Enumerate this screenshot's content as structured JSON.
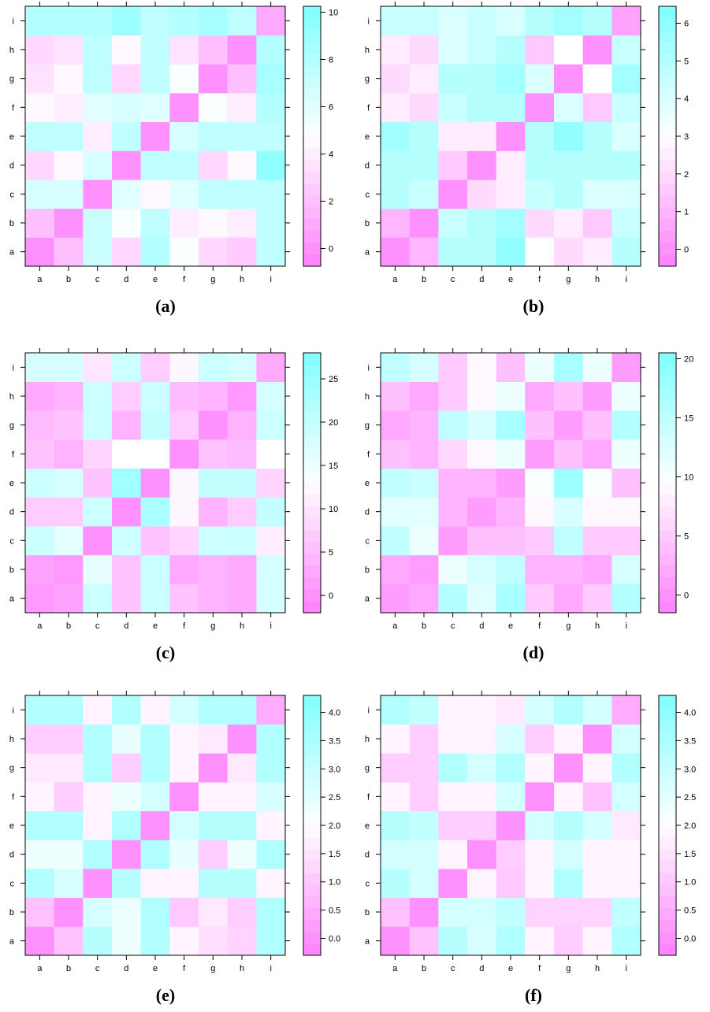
{
  "chart_data": [
    {
      "type": "heatmap",
      "label": "(a)",
      "x_categories": [
        "a",
        "b",
        "c",
        "d",
        "e",
        "f",
        "g",
        "h",
        "i"
      ],
      "y_categories": [
        "a",
        "b",
        "c",
        "d",
        "e",
        "f",
        "g",
        "h",
        "i"
      ],
      "scale": {
        "min": -0.75,
        "max": 10.25,
        "ticks": [
          0,
          2,
          4,
          6,
          8,
          10
        ],
        "tick_labels": [
          "0",
          "2",
          "4",
          "6",
          "8",
          "10"
        ]
      },
      "values": [
        [
          0,
          2,
          7,
          3,
          8,
          5,
          3,
          2.5,
          7.5
        ],
        [
          2,
          0,
          7,
          5,
          7.5,
          4,
          4.5,
          4,
          7.5
        ],
        [
          6.5,
          6.5,
          0,
          6,
          4.5,
          6,
          7.5,
          7.5,
          7.5
        ],
        [
          3,
          4.5,
          6.5,
          0,
          7.5,
          7.5,
          3,
          4.5,
          9.5
        ],
        [
          7.5,
          7.5,
          4,
          7.5,
          0,
          6.5,
          7.5,
          7.5,
          7.5
        ],
        [
          4.5,
          4,
          6,
          6.5,
          6,
          0,
          5,
          4,
          8
        ],
        [
          3.5,
          4.5,
          7.5,
          3,
          7.5,
          5,
          0,
          2,
          8.5
        ],
        [
          3,
          3.5,
          7.5,
          4.5,
          7.5,
          3.5,
          2,
          0,
          8
        ],
        [
          8,
          8,
          8,
          9,
          7.5,
          8,
          8.5,
          7.5,
          1
        ]
      ]
    },
    {
      "type": "heatmap",
      "label": "(b)",
      "x_categories": [
        "a",
        "b",
        "c",
        "d",
        "e",
        "f",
        "g",
        "h",
        "i"
      ],
      "y_categories": [
        "a",
        "b",
        "c",
        "d",
        "e",
        "f",
        "g",
        "h",
        "i"
      ],
      "scale": {
        "min": -0.45,
        "max": 6.45,
        "ticks": [
          0,
          1,
          2,
          3,
          4,
          5,
          6
        ],
        "tick_labels": [
          "0",
          "1",
          "2",
          "3",
          "4",
          "5",
          "6"
        ]
      },
      "values": [
        [
          0,
          1,
          5,
          5,
          6,
          3,
          2,
          2.5,
          5
        ],
        [
          1,
          0,
          4.5,
          5,
          5.5,
          2,
          2.5,
          1.5,
          4.5
        ],
        [
          5,
          4.5,
          0,
          2,
          2.5,
          4.5,
          5,
          4,
          4
        ],
        [
          5,
          5,
          1.5,
          0,
          2.5,
          5,
          5,
          5,
          5
        ],
        [
          5.5,
          5,
          2.5,
          2.5,
          0,
          5,
          6,
          5,
          4
        ],
        [
          2.5,
          2,
          4.5,
          5,
          5,
          0,
          4,
          1.5,
          4.5
        ],
        [
          2,
          2.5,
          5,
          5,
          5.5,
          4,
          0,
          3,
          5.5
        ],
        [
          2.5,
          2,
          4,
          4.5,
          5,
          1.5,
          3,
          0,
          4.5
        ],
        [
          4.5,
          4.5,
          4,
          4.5,
          4,
          5,
          5.5,
          5,
          0.5
        ]
      ]
    },
    {
      "type": "heatmap",
      "label": "(c)",
      "x_categories": [
        "a",
        "b",
        "c",
        "d",
        "e",
        "f",
        "g",
        "h",
        "i"
      ],
      "y_categories": [
        "a",
        "b",
        "c",
        "d",
        "e",
        "f",
        "g",
        "h",
        "i"
      ],
      "scale": {
        "min": -2,
        "max": 28,
        "ticks": [
          0,
          5,
          10,
          15,
          20,
          25
        ],
        "tick_labels": [
          "0",
          "5",
          "10",
          "15",
          "20",
          "25"
        ]
      },
      "values": [
        [
          1,
          2,
          19,
          6,
          19,
          6,
          4,
          3,
          18
        ],
        [
          2,
          1,
          16,
          6,
          19,
          3,
          4,
          3,
          18
        ],
        [
          19,
          16,
          0,
          19,
          6,
          8,
          19,
          19,
          11
        ],
        [
          7,
          7,
          19,
          0,
          23,
          12,
          4,
          7,
          20
        ],
        [
          19,
          18,
          6,
          24,
          0,
          12,
          20,
          20,
          8
        ],
        [
          6,
          4,
          8,
          13,
          13,
          0,
          6,
          5,
          13
        ],
        [
          5,
          6,
          19,
          4,
          20,
          7,
          0,
          4,
          19
        ],
        [
          3,
          4,
          19,
          7,
          19,
          5,
          4,
          1,
          18
        ],
        [
          18,
          18,
          10,
          19,
          7,
          12,
          19,
          18,
          3
        ]
      ]
    },
    {
      "type": "heatmap",
      "label": "(d)",
      "x_categories": [
        "a",
        "b",
        "c",
        "d",
        "e",
        "f",
        "g",
        "h",
        "i"
      ],
      "y_categories": [
        "a",
        "b",
        "c",
        "d",
        "e",
        "f",
        "g",
        "h",
        "i"
      ],
      "scale": {
        "min": -1.5,
        "max": 20.5,
        "ticks": [
          0,
          5,
          10,
          15,
          20
        ],
        "tick_labels": [
          "0",
          "5",
          "10",
          "15",
          "20"
        ]
      },
      "values": [
        [
          1,
          2,
          16,
          12,
          17,
          5,
          2,
          5,
          16
        ],
        [
          2,
          1,
          11,
          13,
          15,
          3,
          3,
          2,
          13
        ],
        [
          15,
          11,
          1,
          4,
          4,
          5,
          15,
          5,
          5
        ],
        [
          12,
          12,
          3,
          1,
          3,
          9,
          13,
          9,
          9
        ],
        [
          15,
          14,
          3,
          3,
          1,
          10,
          18,
          10,
          4
        ],
        [
          4,
          3,
          6,
          9,
          11,
          1,
          4,
          2,
          11
        ],
        [
          2,
          3,
          15,
          13,
          17,
          4,
          1,
          4,
          16
        ],
        [
          4,
          2,
          5,
          9,
          11,
          2,
          4,
          1,
          11
        ],
        [
          15,
          13,
          5,
          9,
          4,
          11,
          17,
          11,
          1
        ]
      ]
    },
    {
      "type": "heatmap",
      "label": "(e)",
      "x_categories": [
        "a",
        "b",
        "c",
        "d",
        "e",
        "f",
        "g",
        "h",
        "i"
      ],
      "y_categories": [
        "a",
        "b",
        "c",
        "d",
        "e",
        "f",
        "g",
        "h",
        "i"
      ],
      "scale": {
        "min": -0.3,
        "max": 4.3,
        "ticks": [
          0,
          0.5,
          1,
          1.5,
          2,
          2.5,
          3,
          3.5,
          4
        ],
        "tick_labels": [
          "0.0",
          "0.5",
          "1.0",
          "1.5",
          "2.0",
          "2.5",
          "3.0",
          "3.5",
          "4.0"
        ]
      },
      "values": [
        [
          0,
          0.9,
          3.3,
          2.3,
          3.4,
          1.8,
          1.4,
          1.2,
          3.4
        ],
        [
          0.9,
          0,
          2.7,
          2.3,
          3.4,
          1,
          1.6,
          1.1,
          3.4
        ],
        [
          3.4,
          2.7,
          0,
          3.3,
          1.8,
          1.8,
          3.3,
          3.3,
          1.8
        ],
        [
          2.3,
          2.3,
          3.4,
          0,
          3.4,
          2.4,
          1.1,
          2.3,
          3.4
        ],
        [
          3.4,
          3.4,
          1.8,
          3.4,
          0,
          2.8,
          3.3,
          3.3,
          1.8
        ],
        [
          1.8,
          1.1,
          1.8,
          2.3,
          2.8,
          0,
          1.8,
          1.8,
          2.7
        ],
        [
          1.6,
          1.6,
          3.4,
          1.1,
          3.4,
          1.8,
          0,
          1.6,
          3.4
        ],
        [
          1.1,
          1.1,
          3.4,
          2.4,
          3.4,
          1.8,
          1.6,
          0,
          3.4
        ],
        [
          3.4,
          3.4,
          1.8,
          3.4,
          1.8,
          2.8,
          3.4,
          3.4,
          0.5
        ]
      ]
    },
    {
      "type": "heatmap",
      "label": "(f)",
      "x_categories": [
        "a",
        "b",
        "c",
        "d",
        "e",
        "f",
        "g",
        "h",
        "i"
      ],
      "y_categories": [
        "a",
        "b",
        "c",
        "d",
        "e",
        "f",
        "g",
        "h",
        "i"
      ],
      "scale": {
        "min": -0.3,
        "max": 4.3,
        "ticks": [
          0,
          0.5,
          1,
          1.5,
          2,
          2.5,
          3,
          3.5,
          4
        ],
        "tick_labels": [
          "0.0",
          "0.5",
          "1.0",
          "1.5",
          "2.0",
          "2.5",
          "3.0",
          "3.5",
          "4.0"
        ]
      },
      "values": [
        [
          0,
          0.9,
          3.3,
          2.7,
          3.4,
          1.8,
          1.1,
          1.8,
          3.4
        ],
        [
          0.9,
          0,
          2.8,
          2.8,
          3.1,
          1.2,
          1.2,
          1.2,
          3.1
        ],
        [
          3.3,
          2.8,
          0,
          1.8,
          1,
          1.8,
          3.4,
          1.8,
          1.8
        ],
        [
          2.8,
          2.8,
          1.8,
          0,
          1.1,
          1.8,
          2.8,
          1.8,
          1.8
        ],
        [
          3.3,
          3.1,
          1.1,
          1.1,
          0,
          2.8,
          3.3,
          2.8,
          1.6
        ],
        [
          1.8,
          1.1,
          1.8,
          1.8,
          2.8,
          0,
          1.8,
          0.9,
          2.8
        ],
        [
          1.1,
          1.1,
          3.4,
          2.8,
          3.4,
          1.8,
          0,
          1.8,
          3.4
        ],
        [
          1.8,
          1.1,
          1.8,
          1.8,
          2.7,
          1.1,
          1.8,
          0,
          2.8
        ],
        [
          3.4,
          3.1,
          1.8,
          1.8,
          1.6,
          2.8,
          3.4,
          2.8,
          0.5
        ]
      ]
    }
  ]
}
